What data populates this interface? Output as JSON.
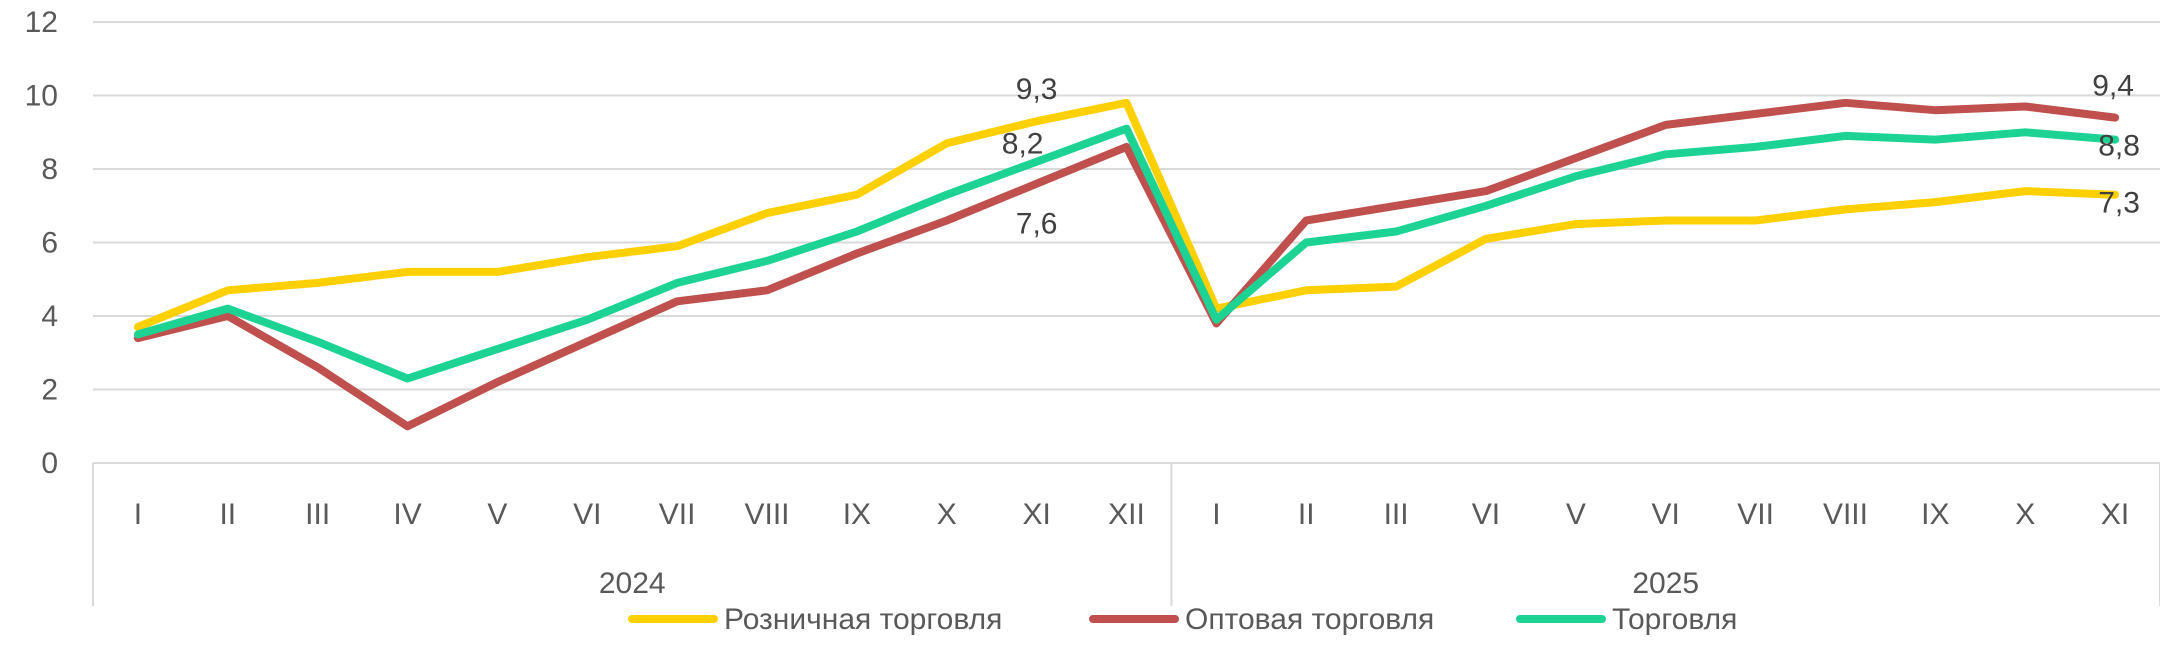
{
  "chart_data": {
    "type": "line",
    "categories": [
      "I",
      "II",
      "III",
      "IV",
      "V",
      "VI",
      "VII",
      "VIII",
      "IX",
      "X",
      "XI",
      "XII",
      "I",
      "II",
      "III",
      "VI",
      "V",
      "VI",
      "VII",
      "VIII",
      "IX",
      "X",
      "XI"
    ],
    "groups": [
      {
        "label": "2024",
        "count": 12
      },
      {
        "label": "2025",
        "count": 11
      }
    ],
    "ylim": [
      0,
      12
    ],
    "yticks": [
      0,
      2,
      4,
      6,
      8,
      10,
      12
    ],
    "grid": true,
    "legend": "bottom",
    "series": [
      {
        "name": "Розничная торговля",
        "color": "#FFD000",
        "values": [
          3.7,
          4.7,
          4.9,
          5.2,
          5.2,
          5.6,
          5.9,
          6.8,
          7.3,
          8.7,
          9.3,
          9.8,
          4.2,
          4.7,
          4.8,
          6.1,
          6.5,
          6.6,
          6.6,
          6.9,
          7.1,
          7.4,
          7.3
        ]
      },
      {
        "name": "Оптовая торговля",
        "color": "#C0504D",
        "values": [
          3.4,
          4.0,
          2.6,
          1.0,
          2.2,
          3.3,
          4.4,
          4.7,
          5.7,
          6.6,
          7.6,
          8.6,
          3.8,
          6.6,
          7.0,
          7.4,
          8.3,
          9.2,
          9.5,
          9.8,
          9.6,
          9.7,
          9.4
        ]
      },
      {
        "name": "Торговля",
        "color": "#1DD394",
        "values": [
          3.5,
          4.2,
          3.3,
          2.3,
          3.1,
          3.9,
          4.9,
          5.5,
          6.3,
          7.3,
          8.2,
          9.1,
          3.9,
          6.0,
          6.3,
          7.0,
          7.8,
          8.4,
          8.6,
          8.9,
          8.8,
          9.0,
          8.8
        ]
      }
    ],
    "data_labels": [
      {
        "series": 0,
        "index": 10,
        "text": "9,3"
      },
      {
        "series": 2,
        "index": 10,
        "text": "8,2"
      },
      {
        "series": 1,
        "index": 10,
        "text": "7,6"
      },
      {
        "series": 1,
        "index": 22,
        "text": "9,4"
      },
      {
        "series": 2,
        "index": 22,
        "text": "8,8"
      },
      {
        "series": 0,
        "index": 22,
        "text": "7,3"
      }
    ]
  }
}
